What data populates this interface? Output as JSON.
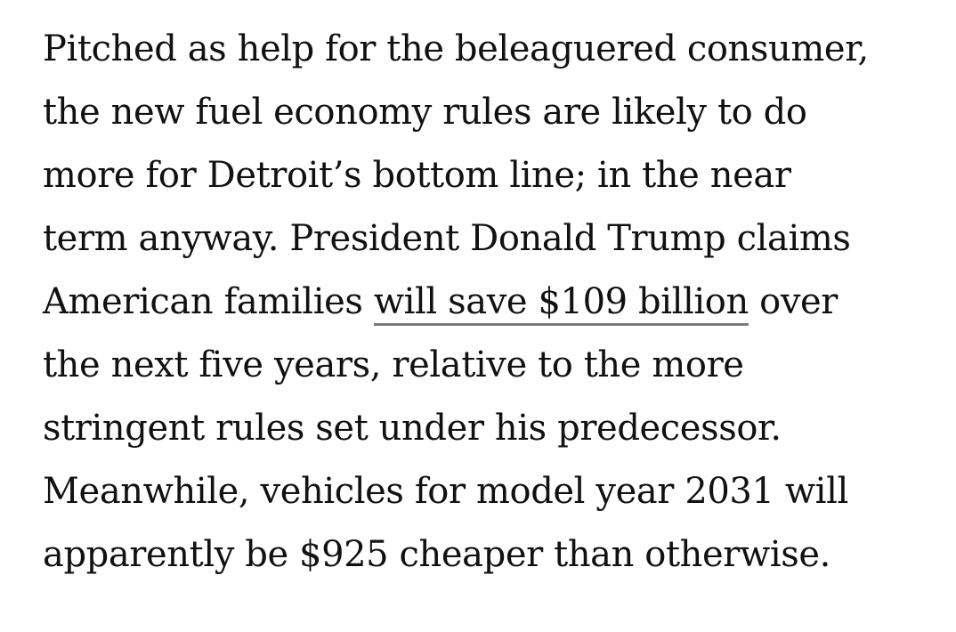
{
  "article": {
    "paragraph": {
      "line1": "Pitched as help for the beleaguered consumer,",
      "line2": "the new fuel economy rules are likely to do",
      "line3": "more for Detroit’s bottom line; in the near",
      "line4": "term anyway. President Donald Trump claims",
      "line5_before": "American families ",
      "link_text": "will save $109 billion",
      "line5_after": " over",
      "line6": "the next five years, relative to the more",
      "line7": "stringent rules set under his predecessor.",
      "line8": "Meanwhile, vehicles for model year 2031 will",
      "line9": "apparently be $925 cheaper than otherwise."
    }
  }
}
